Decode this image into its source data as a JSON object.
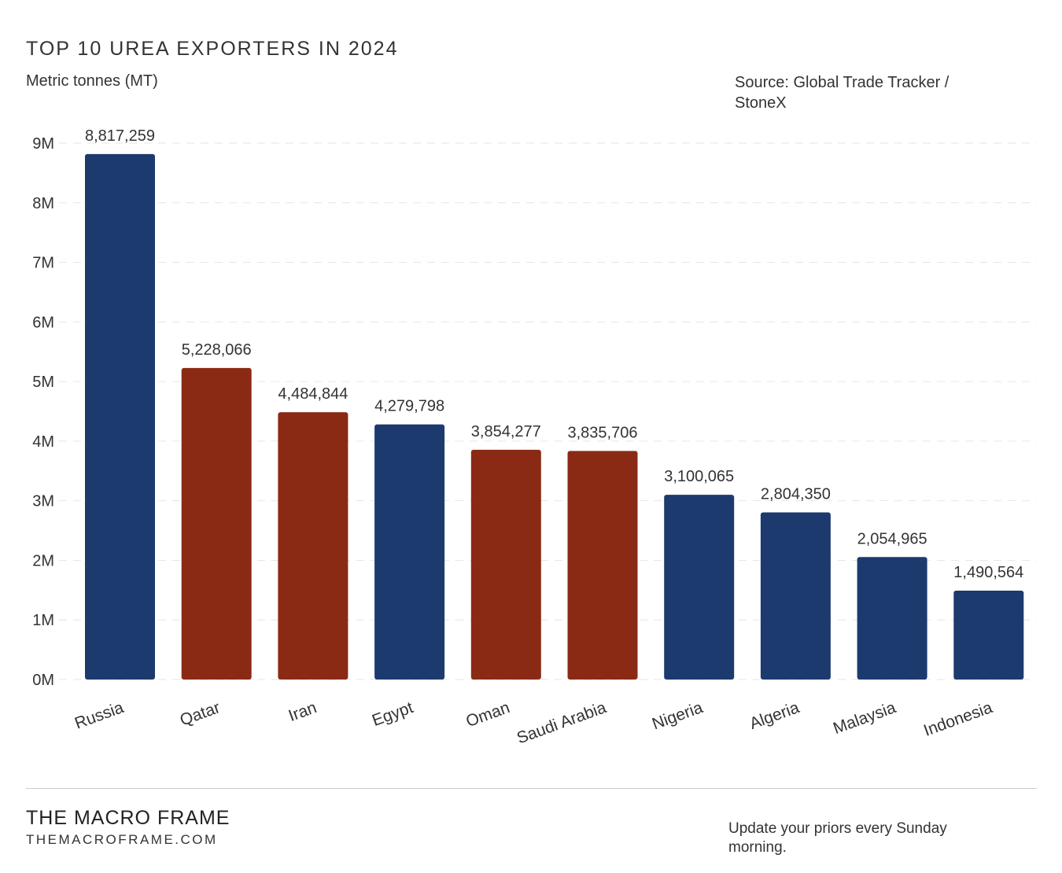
{
  "header": {
    "title": "TOP 10 UREA EXPORTERS IN 2024",
    "subtitle": "Metric tonnes (MT)",
    "source": "Source: Global Trade Tracker / StoneX"
  },
  "footer": {
    "brand": "THE MACRO FRAME",
    "url": "THEMACROFRAME.COM",
    "tagline": "Update your priors every Sunday morning."
  },
  "colors": {
    "default": "#1c3a6e",
    "highlight": "#8b2a14"
  },
  "chart_data": {
    "type": "bar",
    "title": "TOP 10 UREA EXPORTERS IN 2024",
    "ylabel": "Metric tonnes (MT)",
    "ylim": [
      0,
      9000000
    ],
    "yticks": [
      0,
      1000000,
      2000000,
      3000000,
      4000000,
      5000000,
      6000000,
      7000000,
      8000000,
      9000000
    ],
    "ytick_labels": [
      "0M",
      "1M",
      "2M",
      "3M",
      "4M",
      "5M",
      "6M",
      "7M",
      "8M",
      "9M"
    ],
    "grid": true,
    "categories": [
      "Russia",
      "Qatar",
      "Iran",
      "Egypt",
      "Oman",
      "Saudi Arabia",
      "Nigeria",
      "Algeria",
      "Malaysia",
      "Indonesia"
    ],
    "values": [
      8817259,
      5228066,
      4484844,
      4279798,
      3854277,
      3835706,
      3100065,
      2804350,
      2054965,
      1490564
    ],
    "value_labels": [
      "8,817,259",
      "5,228,066",
      "4,484,844",
      "4,279,798",
      "3,854,277",
      "3,835,706",
      "3,100,065",
      "2,804,350",
      "2,054,965",
      "1,490,564"
    ],
    "highlight": [
      false,
      true,
      true,
      false,
      true,
      true,
      false,
      false,
      false,
      false
    ]
  }
}
